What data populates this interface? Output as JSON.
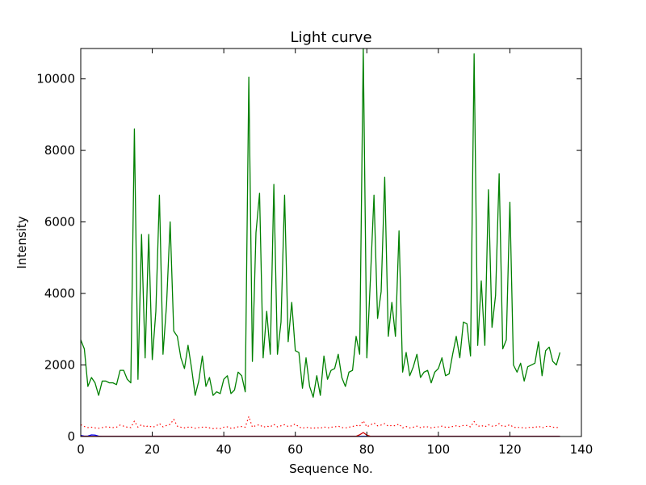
{
  "chart_data": {
    "type": "line",
    "title": "Light curve",
    "xlabel": "Sequence No.",
    "ylabel": "Intensity",
    "xlim": [
      0,
      140
    ],
    "ylim": [
      0,
      10850
    ],
    "xticks": [
      0,
      20,
      40,
      60,
      80,
      100,
      120,
      140
    ],
    "yticks": [
      0,
      2000,
      4000,
      6000,
      8000,
      10000
    ],
    "xtick_labels": [
      "0",
      "20",
      "40",
      "60",
      "80",
      "100",
      "120",
      "140"
    ],
    "ytick_labels": [
      "0",
      "2000",
      "4000",
      "6000",
      "8000",
      "10000"
    ],
    "grid": false,
    "legend": "none",
    "x": [
      0,
      1,
      2,
      3,
      4,
      5,
      6,
      7,
      8,
      9,
      10,
      11,
      12,
      13,
      14,
      15,
      16,
      17,
      18,
      19,
      20,
      21,
      22,
      23,
      24,
      25,
      26,
      27,
      28,
      29,
      30,
      31,
      32,
      33,
      34,
      35,
      36,
      37,
      38,
      39,
      40,
      41,
      42,
      43,
      44,
      45,
      46,
      47,
      48,
      49,
      50,
      51,
      52,
      53,
      54,
      55,
      56,
      57,
      58,
      59,
      60,
      61,
      62,
      63,
      64,
      65,
      66,
      67,
      68,
      69,
      70,
      71,
      72,
      73,
      74,
      75,
      76,
      77,
      78,
      79,
      80,
      81,
      82,
      83,
      84,
      85,
      86,
      87,
      88,
      89,
      90,
      91,
      92,
      93,
      94,
      95,
      96,
      97,
      98,
      99,
      100,
      101,
      102,
      103,
      104,
      105,
      106,
      107,
      108,
      109,
      110,
      111,
      112,
      113,
      114,
      115,
      116,
      117,
      118,
      119,
      120,
      121,
      122,
      123,
      124,
      125,
      126,
      127,
      128,
      129,
      130,
      131,
      132,
      133,
      134
    ],
    "series": [
      {
        "color": "#008000",
        "style": "solid",
        "values": [
          2700,
          2450,
          1400,
          1650,
          1500,
          1150,
          1550,
          1550,
          1500,
          1500,
          1450,
          1850,
          1850,
          1600,
          1500,
          8600,
          1600,
          5650,
          2200,
          5650,
          2150,
          3500,
          6750,
          2300,
          3700,
          6000,
          2950,
          2800,
          2200,
          1900,
          2550,
          1900,
          1150,
          1550,
          2250,
          1400,
          1650,
          1150,
          1250,
          1200,
          1600,
          1700,
          1200,
          1300,
          1800,
          1700,
          1250,
          10050,
          2100,
          5700,
          6800,
          2200,
          3500,
          2300,
          7050,
          2300,
          3200,
          6750,
          2650,
          3750,
          2400,
          2350,
          1350,
          2200,
          1400,
          1100,
          1700,
          1150,
          2250,
          1600,
          1850,
          1900,
          2300,
          1650,
          1400,
          1800,
          1850,
          2800,
          2300,
          10850,
          2200,
          4400,
          6750,
          3300,
          4050,
          7250,
          2800,
          3750,
          2800,
          5750,
          1800,
          2350,
          1700,
          1950,
          2300,
          1650,
          1800,
          1850,
          1500,
          1800,
          1900,
          2200,
          1700,
          1750,
          2300,
          2800,
          2200,
          3200,
          3150,
          2250,
          10700,
          2550,
          4350,
          2550,
          6900,
          3050,
          3950,
          7350,
          2450,
          2700,
          6550,
          2000,
          1800,
          2050,
          1550,
          1950,
          2000,
          2050,
          2650,
          1700,
          2400,
          2500,
          2100,
          2000,
          2350
        ]
      },
      {
        "color": "#ff0000",
        "style": "dotted",
        "values": [
          330,
          280,
          250,
          260,
          240,
          230,
          250,
          270,
          260,
          250,
          260,
          320,
          290,
          260,
          250,
          430,
          260,
          330,
          270,
          300,
          260,
          290,
          360,
          270,
          310,
          340,
          480,
          290,
          260,
          240,
          260,
          260,
          230,
          250,
          260,
          260,
          240,
          220,
          230,
          220,
          260,
          270,
          230,
          240,
          270,
          280,
          260,
          560,
          260,
          310,
          330,
          260,
          290,
          270,
          340,
          270,
          300,
          330,
          280,
          300,
          350,
          270,
          230,
          260,
          240,
          230,
          250,
          230,
          270,
          240,
          260,
          270,
          290,
          250,
          240,
          260,
          280,
          310,
          290,
          440,
          270,
          320,
          380,
          300,
          320,
          360,
          290,
          310,
          300,
          350,
          240,
          280,
          240,
          260,
          290,
          250,
          270,
          270,
          240,
          260,
          270,
          290,
          260,
          260,
          280,
          300,
          280,
          310,
          310,
          270,
          420,
          280,
          310,
          270,
          330,
          290,
          300,
          360,
          280,
          290,
          330,
          260,
          250,
          260,
          230,
          250,
          260,
          250,
          290,
          240,
          280,
          290,
          260,
          250,
          260
        ]
      },
      {
        "color": "#0000ff",
        "style": "solid",
        "values": [
          30,
          10,
          15,
          45,
          40,
          10,
          5,
          5,
          5,
          5,
          5,
          5,
          5,
          5,
          5,
          5,
          5,
          5,
          5,
          5,
          5,
          5,
          5,
          5,
          5,
          5,
          5,
          5,
          5,
          5,
          5,
          5,
          5,
          5,
          5,
          5,
          5,
          5,
          5,
          5,
          5,
          5,
          5,
          5,
          5,
          5,
          5,
          5,
          5,
          5,
          5,
          5,
          5,
          5,
          5,
          5,
          5,
          5,
          5,
          5,
          5,
          5,
          5,
          5,
          5,
          5,
          5,
          5,
          5,
          5,
          5,
          5,
          5,
          5,
          5,
          5,
          5,
          5,
          5,
          5,
          5,
          5,
          5,
          5,
          5,
          5,
          5,
          5,
          5,
          5,
          5,
          5,
          5,
          5,
          5,
          5,
          5,
          5,
          5,
          5,
          5,
          5,
          5,
          5,
          5,
          5,
          5,
          5,
          5,
          5,
          5,
          5,
          5,
          5,
          5,
          5,
          5,
          5,
          5,
          5,
          5,
          5,
          5,
          5,
          5,
          5,
          5,
          5,
          5,
          5,
          5,
          5,
          5,
          5,
          5
        ]
      },
      {
        "color": "#cc0000",
        "style": "solid",
        "values": [
          5,
          5,
          5,
          5,
          5,
          5,
          5,
          5,
          5,
          5,
          5,
          5,
          5,
          5,
          5,
          5,
          5,
          5,
          5,
          5,
          5,
          5,
          5,
          5,
          5,
          5,
          5,
          5,
          5,
          5,
          5,
          5,
          5,
          5,
          5,
          5,
          5,
          5,
          5,
          5,
          5,
          5,
          5,
          5,
          5,
          5,
          5,
          5,
          5,
          5,
          5,
          5,
          5,
          5,
          5,
          5,
          5,
          5,
          5,
          5,
          5,
          5,
          5,
          5,
          5,
          5,
          5,
          5,
          5,
          5,
          5,
          5,
          5,
          5,
          5,
          5,
          5,
          5,
          50,
          110,
          40,
          5,
          5,
          5,
          5,
          5,
          5,
          5,
          5,
          5,
          5,
          5,
          5,
          5,
          5,
          5,
          5,
          5,
          5,
          5,
          5,
          5,
          5,
          5,
          5,
          5,
          5,
          5,
          5,
          5,
          5,
          5,
          5,
          5,
          5,
          5,
          5,
          5,
          5,
          5,
          5,
          5,
          5,
          5,
          5,
          5,
          5,
          5,
          5,
          5,
          5,
          5,
          5,
          5,
          5
        ]
      }
    ]
  }
}
